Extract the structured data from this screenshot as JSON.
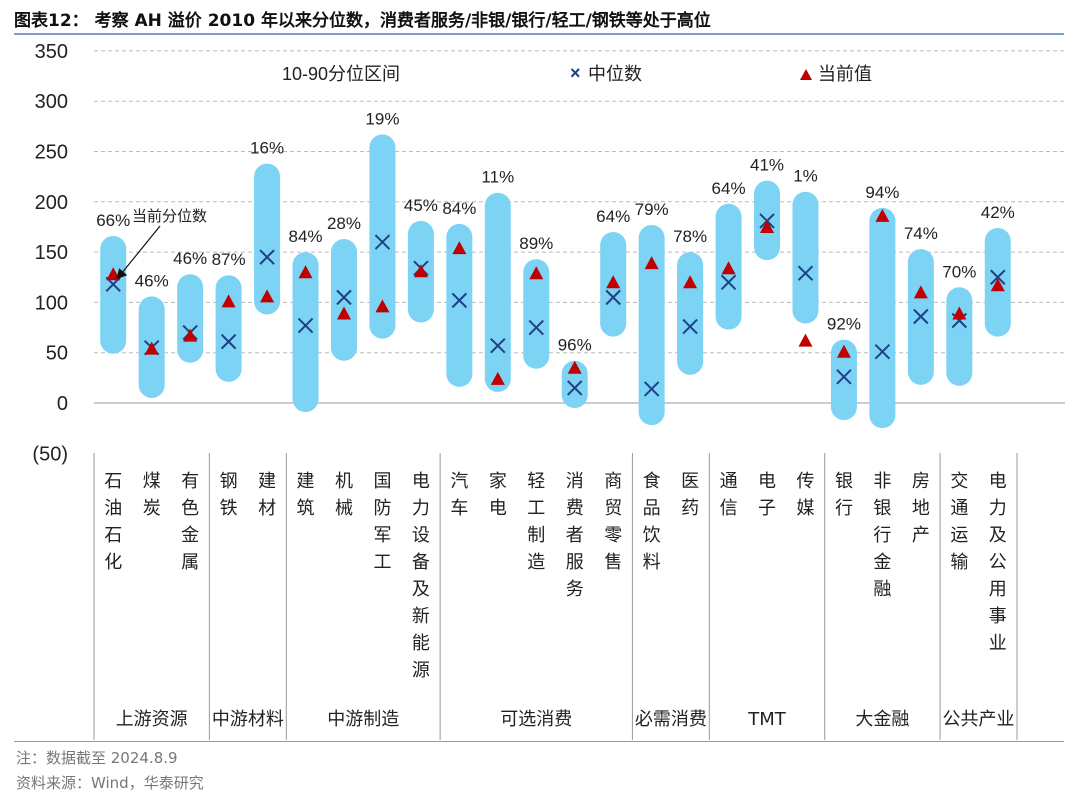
{
  "title": "图表12：  考察 AH 溢价 2010 年以来分位数，消费者服务/非银/银行/轻工/钢铁等处于高位",
  "note": "注：数据截至 2024.8.9",
  "source": "资料来源：Wind，华泰研究",
  "chart_data": {
    "type": "range-bar",
    "ylim": [
      -50,
      350
    ],
    "yticks": [
      "(50)",
      "0",
      "50",
      "100",
      "150",
      "200",
      "250",
      "300",
      "350"
    ],
    "ytick_values": [
      -50,
      0,
      50,
      100,
      150,
      200,
      250,
      300,
      350
    ],
    "grid": true,
    "legend": {
      "placement": "top",
      "items": [
        "10-90分位区间",
        "中位数",
        "当前值"
      ]
    },
    "annotation": "当前分位数",
    "categories": [
      "石油石化",
      "煤炭",
      "有色金属",
      "钢铁",
      "建材",
      "建筑",
      "机械",
      "国防军工",
      "电力设备及新能源",
      "汽车",
      "家电",
      "轻工制造",
      "消费者服务",
      "商贸零售",
      "食品饮料",
      "医药",
      "通信",
      "电子",
      "传媒",
      "银行",
      "非银行金融",
      "房地产",
      "交通运输",
      "电力及公用事业"
    ],
    "p10": [
      49,
      5,
      40,
      21,
      88,
      -9,
      42,
      64,
      80,
      16,
      11,
      34,
      -5,
      66,
      -22,
      28,
      73,
      142,
      79,
      -17,
      -25,
      18,
      17,
      66
    ],
    "p90": [
      166,
      106,
      128,
      127,
      238,
      150,
      163,
      267,
      181,
      178,
      209,
      143,
      42,
      170,
      177,
      150,
      198,
      221,
      210,
      63,
      194,
      153,
      115,
      174
    ],
    "median": [
      118,
      55,
      70,
      61,
      145,
      77,
      105,
      160,
      134,
      102,
      57,
      75,
      15,
      105,
      14,
      76,
      120,
      181,
      129,
      26,
      51,
      86,
      82,
      125
    ],
    "current": [
      128,
      54,
      67,
      101,
      106,
      130,
      89,
      96,
      131,
      154,
      24,
      129,
      35,
      120,
      139,
      120,
      134,
      175,
      62,
      51,
      186,
      110,
      89,
      117
    ],
    "percentile_labels": [
      "66%",
      "46%",
      "46%",
      "87%",
      "16%",
      "84%",
      "28%",
      "19%",
      "45%",
      "84%",
      "11%",
      "89%",
      "96%",
      "64%",
      "79%",
      "78%",
      "64%",
      "41%",
      "1%",
      "92%",
      "94%",
      "74%",
      "70%",
      "42%"
    ],
    "groups": [
      {
        "name": "上游资源",
        "count": 3
      },
      {
        "name": "中游材料",
        "count": 2
      },
      {
        "name": "中游制造",
        "count": 4
      },
      {
        "name": "可选消费",
        "count": 5
      },
      {
        "name": "必需消费",
        "count": 2
      },
      {
        "name": "TMT",
        "count": 3
      },
      {
        "name": "大金融",
        "count": 3
      },
      {
        "name": "公共产业",
        "count": 2
      }
    ],
    "colors": {
      "range": "#7dd3f3",
      "median": "#1f3f8a",
      "current": "#c00000"
    }
  }
}
